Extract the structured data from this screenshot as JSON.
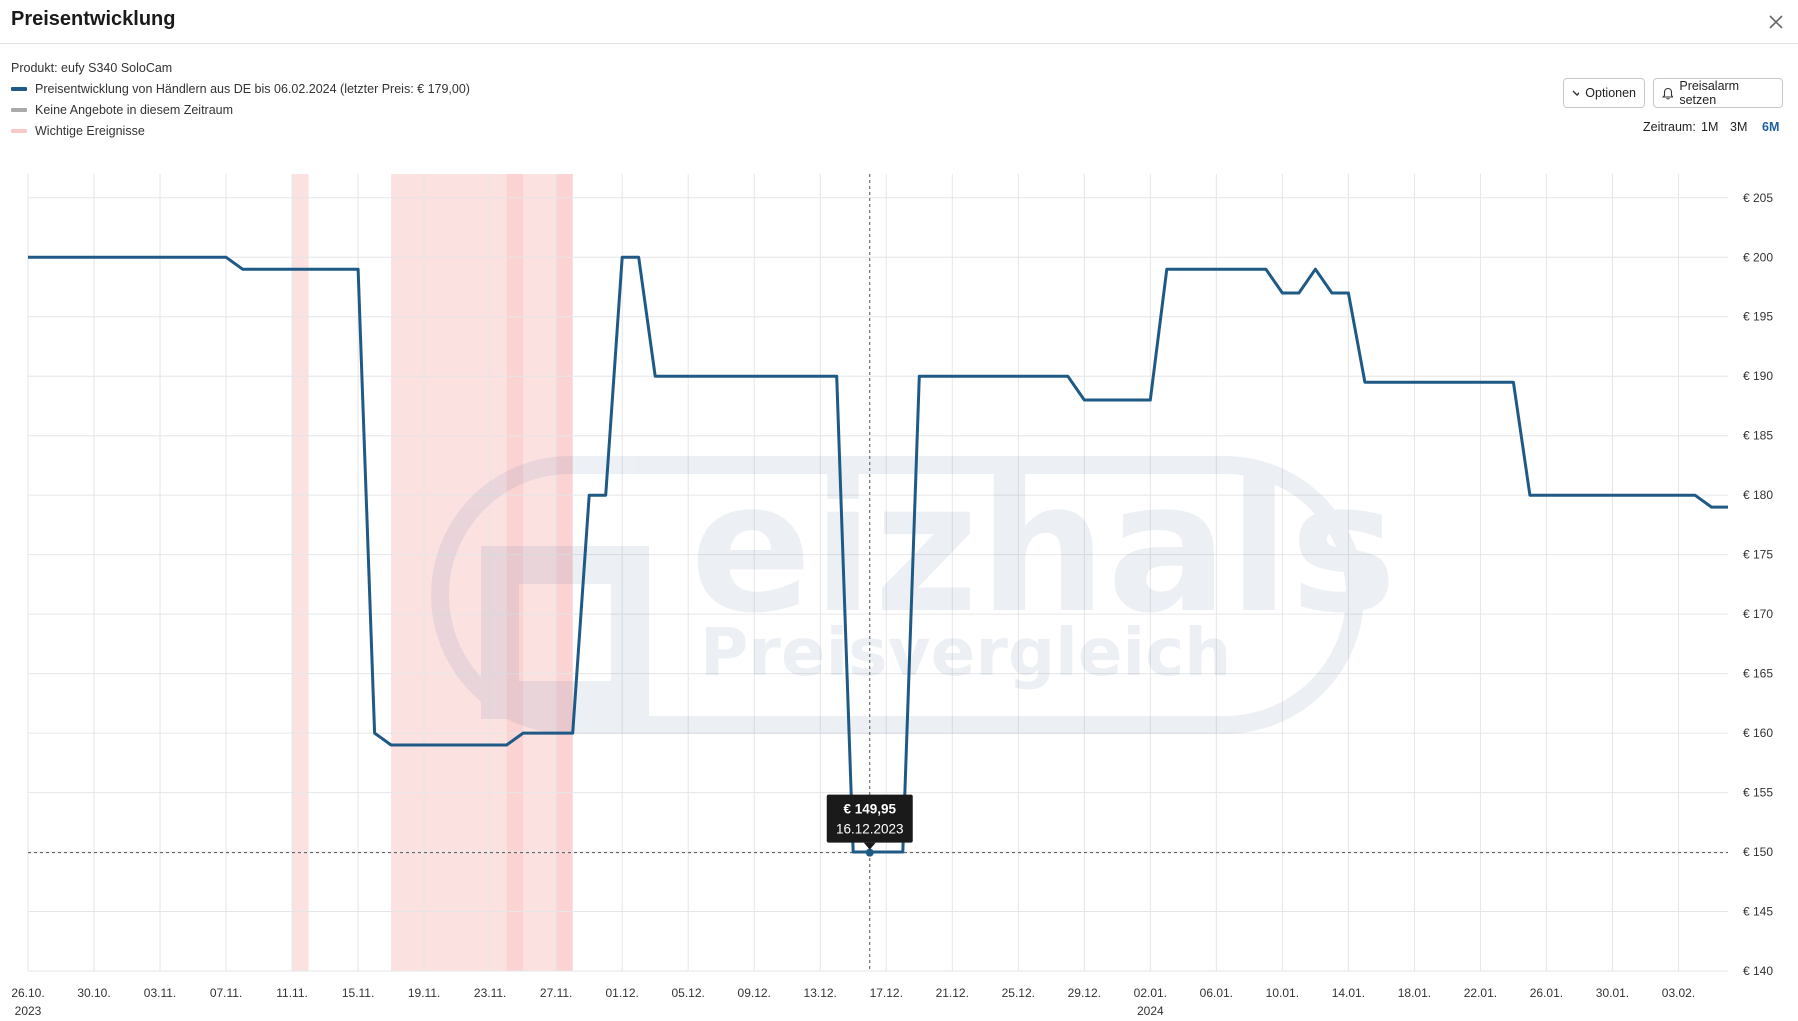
{
  "dialog": {
    "title": "Preisentwicklung"
  },
  "product": {
    "label": "Produkt:",
    "name": "eufy S340 SoloCam"
  },
  "legend": [
    {
      "text": "Preisentwicklung von Händlern aus DE bis 06.02.2024 (letzter Preis: € 179,00)",
      "color": "#1f5a86",
      "icon": "line-swatch"
    },
    {
      "text": "Keine Angebote in diesem Zeitraum",
      "color": "#aaaaaa",
      "icon": "line-swatch"
    },
    {
      "text": "Wichtige Ereignisse",
      "color": "#f9c9c9",
      "icon": "band-swatch"
    }
  ],
  "toolbar": {
    "options_label": "Optionen",
    "alarm_label": "Preisalarm setzen"
  },
  "timeframe": {
    "label": "Zeitraum:",
    "options": [
      "1M",
      "3M",
      "6M"
    ],
    "active": "6M"
  },
  "watermark": {
    "brand": "eizhals",
    "subtitle": "Preisvergleich"
  },
  "tooltip": {
    "price": "€ 149,95",
    "date": "16.12.2023"
  },
  "chart_data": {
    "type": "line",
    "ylim": [
      140,
      207
    ],
    "y_ticks": [
      140,
      145,
      150,
      155,
      160,
      165,
      170,
      175,
      180,
      185,
      190,
      195,
      200,
      205
    ],
    "y_tick_labels": [
      "€ 140",
      "€ 145",
      "€ 150",
      "€ 155",
      "€ 160",
      "€ 165",
      "€ 170",
      "€ 175",
      "€ 180",
      "€ 185",
      "€ 190",
      "€ 195",
      "€ 200",
      "€ 205"
    ],
    "xlim": [
      "2023-10-26",
      "2024-02-06"
    ],
    "x_ticks": [
      "2023-10-26",
      "2023-10-30",
      "2023-11-03",
      "2023-11-07",
      "2023-11-11",
      "2023-11-15",
      "2023-11-19",
      "2023-11-23",
      "2023-11-27",
      "2023-12-01",
      "2023-12-05",
      "2023-12-09",
      "2023-12-13",
      "2023-12-17",
      "2023-12-21",
      "2023-12-25",
      "2023-12-29",
      "2024-01-02",
      "2024-01-06",
      "2024-01-10",
      "2024-01-14",
      "2024-01-18",
      "2024-01-22",
      "2024-01-26",
      "2024-01-30",
      "2024-02-03"
    ],
    "x_tick_labels": [
      "26.10.",
      "30.10.",
      "03.11.",
      "07.11.",
      "11.11.",
      "15.11.",
      "19.11.",
      "23.11.",
      "27.11.",
      "01.12.",
      "05.12.",
      "09.12.",
      "13.12.",
      "17.12.",
      "21.12.",
      "25.12.",
      "29.12.",
      "02.01.",
      "06.01.",
      "10.01.",
      "14.01.",
      "18.01.",
      "22.01.",
      "26.01.",
      "30.01.",
      "03.02."
    ],
    "year_labels": [
      {
        "date": "2023-10-26",
        "text": "2023"
      },
      {
        "date": "2024-01-02",
        "text": "2024"
      }
    ],
    "series": [
      {
        "name": "Preisentwicklung von Händlern aus DE",
        "color": "#1f5a86",
        "points": [
          [
            "2023-10-26",
            200
          ],
          [
            "2023-11-07",
            200
          ],
          [
            "2023-11-08",
            199
          ],
          [
            "2023-11-15",
            199
          ],
          [
            "2023-11-16",
            160
          ],
          [
            "2023-11-17",
            159
          ],
          [
            "2023-11-24",
            159
          ],
          [
            "2023-11-25",
            160
          ],
          [
            "2023-11-28",
            160
          ],
          [
            "2023-11-29",
            180
          ],
          [
            "2023-11-30",
            180
          ],
          [
            "2023-12-01",
            200
          ],
          [
            "2023-12-02",
            200
          ],
          [
            "2023-12-03",
            190
          ],
          [
            "2023-12-14",
            190
          ],
          [
            "2023-12-15",
            150
          ],
          [
            "2023-12-18",
            150
          ],
          [
            "2023-12-19",
            190
          ],
          [
            "2023-12-28",
            190
          ],
          [
            "2023-12-29",
            188
          ],
          [
            "2024-01-02",
            188
          ],
          [
            "2024-01-03",
            199
          ],
          [
            "2024-01-09",
            199
          ],
          [
            "2024-01-10",
            197
          ],
          [
            "2024-01-11",
            197
          ],
          [
            "2024-01-12",
            199
          ],
          [
            "2024-01-13",
            197
          ],
          [
            "2024-01-14",
            197
          ],
          [
            "2024-01-15",
            189.5
          ],
          [
            "2024-01-24",
            189.5
          ],
          [
            "2024-01-25",
            180
          ],
          [
            "2024-02-04",
            180
          ],
          [
            "2024-02-05",
            179
          ],
          [
            "2024-02-06",
            179
          ]
        ]
      }
    ],
    "events": [
      [
        "2023-11-11",
        "2023-11-12"
      ],
      [
        "2023-11-17",
        "2023-11-28"
      ],
      [
        "2023-11-24",
        "2023-11-25"
      ],
      [
        "2023-11-27",
        "2023-11-28"
      ]
    ],
    "highlight": {
      "date": "2023-12-16",
      "value": 149.95
    },
    "grid": true
  }
}
